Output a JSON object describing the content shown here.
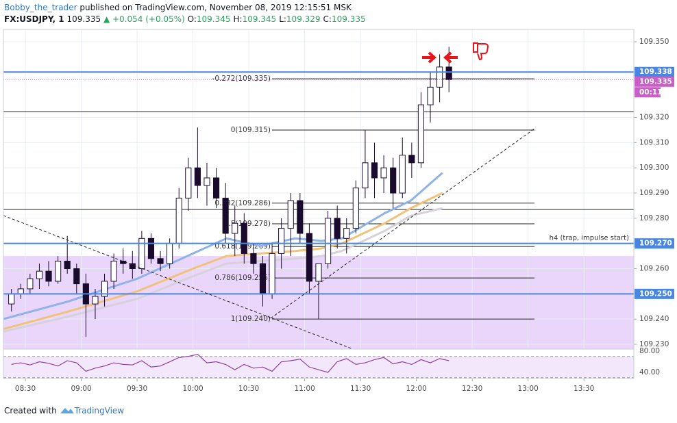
{
  "header": {
    "author": "Bobby_the_trader",
    "published": "published on TradingView.com, November 08, 2019 12:15:51 MSK",
    "symbol": "FX:USDJPY, 1",
    "last": "109.335",
    "change": "▲ +0.054 (+0.05%)",
    "ohlc": [
      {
        "label": "O:",
        "value": "109.345"
      },
      {
        "label": "H:",
        "value": "109.345"
      },
      {
        "label": "L:",
        "value": "109.329"
      },
      {
        "label": "C:",
        "value": "109.335"
      }
    ]
  },
  "chart_data": {
    "type": "candlestick",
    "xlim": [
      498.2,
      836.8
    ],
    "xticks": [
      {
        "value": 510,
        "label": "08:30"
      },
      {
        "value": 540,
        "label": "09:00"
      },
      {
        "value": 570,
        "label": "09:30"
      },
      {
        "value": 600,
        "label": "10:00"
      },
      {
        "value": 630,
        "label": "10:30"
      },
      {
        "value": 660,
        "label": "11:00"
      },
      {
        "value": 690,
        "label": "11:30"
      },
      {
        "value": 720,
        "label": "12:00"
      },
      {
        "value": 750,
        "label": "12:30"
      },
      {
        "value": 780,
        "label": "13:00"
      },
      {
        "value": 810,
        "label": "13:30"
      }
    ],
    "ylim": [
      109.2281,
      109.3549
    ],
    "yticks": [
      {
        "value": 109.35,
        "label": "109.350"
      },
      {
        "value": 109.32,
        "label": "109.320"
      },
      {
        "value": 109.31,
        "label": "109.310"
      },
      {
        "value": 109.3,
        "label": "109.300"
      },
      {
        "value": 109.29,
        "label": "109.290"
      },
      {
        "value": 109.28,
        "label": "109.280"
      },
      {
        "value": 109.26,
        "label": "109.260"
      },
      {
        "value": 109.24,
        "label": "109.240"
      },
      {
        "value": 109.23,
        "label": "109.230"
      }
    ],
    "grid": true,
    "up_color": "#ffffff",
    "down_color": "#1a0a2e",
    "candles": {
      "x": [
        500,
        505,
        510,
        515,
        520,
        525,
        530,
        535,
        540,
        545,
        550,
        555,
        560,
        565,
        570,
        575,
        580,
        585,
        590,
        595,
        600,
        605,
        610,
        615,
        620,
        625,
        630,
        635,
        640,
        645,
        650,
        655,
        660,
        665,
        670,
        675,
        680,
        685,
        690,
        695,
        700,
        705,
        710,
        715,
        720,
        725,
        730,
        735
      ],
      "open": [
        109.246,
        109.25,
        109.252,
        109.256,
        109.259,
        109.255,
        109.263,
        109.26,
        109.254,
        109.246,
        109.249,
        109.255,
        109.263,
        109.262,
        109.26,
        109.272,
        109.264,
        109.262,
        109.27,
        109.288,
        109.3,
        109.293,
        109.296,
        109.288,
        109.274,
        109.278,
        109.266,
        109.262,
        109.25,
        109.266,
        109.276,
        109.287,
        109.274,
        109.255,
        109.262,
        109.28,
        109.272,
        109.276,
        109.292,
        109.302,
        109.296,
        109.3,
        109.29,
        109.305,
        109.302,
        109.325,
        109.332,
        109.34
      ],
      "high": [
        109.252,
        109.254,
        109.258,
        109.262,
        109.263,
        109.265,
        109.273,
        109.262,
        109.258,
        109.252,
        109.258,
        109.266,
        109.268,
        109.267,
        109.275,
        109.274,
        109.267,
        109.272,
        109.292,
        109.304,
        109.316,
        109.302,
        109.3,
        109.294,
        109.285,
        109.282,
        109.27,
        109.265,
        109.27,
        109.28,
        109.29,
        109.29,
        109.278,
        109.262,
        109.283,
        109.285,
        109.28,
        109.295,
        109.315,
        109.31,
        109.305,
        109.304,
        109.312,
        109.31,
        109.33,
        109.338,
        109.345,
        109.348
      ],
      "low": [
        109.243,
        109.248,
        109.25,
        109.252,
        109.253,
        109.254,
        109.258,
        109.25,
        109.233,
        109.24,
        109.245,
        109.252,
        109.258,
        109.256,
        109.258,
        109.262,
        109.259,
        109.26,
        109.268,
        109.283,
        109.288,
        109.285,
        109.284,
        109.27,
        109.265,
        109.262,
        109.258,
        109.245,
        109.248,
        109.26,
        109.265,
        109.27,
        109.25,
        109.24,
        109.26,
        109.268,
        109.266,
        109.274,
        109.288,
        109.288,
        109.29,
        109.284,
        109.288,
        109.296,
        109.3,
        109.318,
        109.326,
        109.33
      ],
      "close": [
        109.25,
        109.252,
        109.256,
        109.259,
        109.255,
        109.263,
        109.26,
        109.254,
        109.246,
        109.249,
        109.255,
        109.263,
        109.262,
        109.26,
        109.272,
        109.264,
        109.262,
        109.27,
        109.288,
        109.3,
        109.293,
        109.296,
        109.288,
        109.274,
        109.278,
        109.266,
        109.262,
        109.25,
        109.266,
        109.276,
        109.287,
        109.274,
        109.255,
        109.262,
        109.28,
        109.272,
        109.276,
        109.292,
        109.302,
        109.296,
        109.3,
        109.29,
        109.305,
        109.302,
        109.325,
        109.332,
        109.34,
        109.335
      ]
    },
    "lines": [
      {
        "color": "#8fb2e8",
        "x": [
          498,
          533,
          570,
          600,
          618,
          636,
          655,
          669,
          680,
          703,
          717,
          734
        ],
        "values": [
          109.24,
          109.247,
          109.256,
          109.266,
          109.272,
          109.269,
          109.272,
          109.271,
          109.272,
          109.282,
          109.287,
          109.298
        ]
      },
      {
        "color": "#f0c27a",
        "x": [
          498,
          533,
          570,
          600,
          618,
          636,
          655,
          669,
          680,
          703,
          717,
          734
        ],
        "values": [
          109.236,
          109.243,
          109.251,
          109.26,
          109.265,
          109.266,
          109.267,
          109.268,
          109.27,
          109.278,
          109.284,
          109.29
        ]
      },
      {
        "color": "#d6d2dc",
        "x": [
          498,
          533,
          570,
          600,
          618,
          636,
          655,
          669,
          680,
          703,
          717,
          734
        ],
        "values": [
          109.235,
          109.241,
          109.248,
          109.257,
          109.262,
          109.263,
          109.264,
          109.265,
          109.267,
          109.275,
          109.281,
          109.284
        ]
      }
    ],
    "zone": {
      "top": 109.265,
      "color": "#ead5fb"
    },
    "levels": [
      {
        "value": 109.338,
        "label": "109.338",
        "color": "#4a86e0"
      },
      {
        "value": 109.27,
        "label": "109.270",
        "color": "#4a86e0"
      },
      {
        "value": 109.25,
        "label": "109.250",
        "color": "#4a86e0"
      }
    ],
    "black_lines": [
      109.3223,
      109.2835
    ],
    "level_note": "h4 (trap, impulse start)",
    "last_tag": {
      "value": 109.335,
      "label": "109.335",
      "color": "#c75fc5"
    },
    "countdown": "00:11",
    "fib": [
      {
        "label": "-0.272(109.335)",
        "value": 109.3353
      },
      {
        "label": "0(109.315)",
        "value": 109.315
      },
      {
        "label": "0.382(109.286)",
        "value": 109.286
      },
      {
        "label": "0.5(109.278)",
        "value": 109.2778
      },
      {
        "label": "0.618(109.269)",
        "value": 109.2688
      },
      {
        "label": "0.786(109.256)",
        "value": 109.2563
      },
      {
        "label": "1(109.240)",
        "value": 109.24
      }
    ],
    "rsi": {
      "color": "#8e3fa0",
      "ylim": [
        29.7,
        83.9
      ],
      "yticks": [
        {
          "value": 80,
          "label": "80.00"
        },
        {
          "value": 40,
          "label": "40.00"
        }
      ],
      "bands": [
        70,
        30
      ],
      "values": [
        55,
        58,
        54,
        60,
        57,
        52,
        62,
        58,
        42,
        48,
        52,
        58,
        55,
        54,
        62,
        50,
        52,
        60,
        68,
        70,
        74,
        58,
        60,
        55,
        45,
        55,
        48,
        50,
        42,
        60,
        62,
        65,
        50,
        45,
        40,
        60,
        66,
        55,
        58,
        64,
        68,
        56,
        60,
        55,
        64,
        58,
        66,
        62
      ]
    }
  },
  "footer": {
    "created": "Created with",
    "brand": "TradingView"
  }
}
